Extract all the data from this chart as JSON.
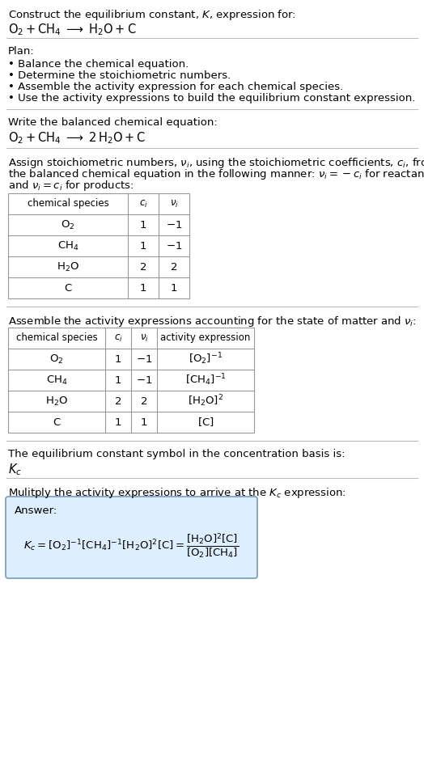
{
  "title_line1": "Construct the equilibrium constant, $K$, expression for:",
  "title_line2_plain": "O",
  "plan_header": "Plan:",
  "plan_items": [
    "• Balance the chemical equation.",
    "• Determine the stoichiometric numbers.",
    "• Assemble the activity expression for each chemical species.",
    "• Use the activity expressions to build the equilibrium constant expression."
  ],
  "balanced_header": "Write the balanced chemical equation:",
  "stoich_intro": [
    "Assign stoichiometric numbers, $\\nu_i$, using the stoichiometric coefficients, $c_i$, from",
    "the balanced chemical equation in the following manner: $\\nu_i = -c_i$ for reactants",
    "and $\\nu_i = c_i$ for products:"
  ],
  "table1_cols": [
    "chemical species",
    "$c_i$",
    "$\\nu_i$"
  ],
  "table1_rows": [
    [
      "$\\mathrm{O_2}$",
      "1",
      "$-1$"
    ],
    [
      "$\\mathrm{CH_4}$",
      "1",
      "$-1$"
    ],
    [
      "$\\mathrm{H_2O}$",
      "2",
      "2"
    ],
    [
      "C",
      "1",
      "1"
    ]
  ],
  "activity_header": "Assemble the activity expressions accounting for the state of matter and $\\nu_i$:",
  "table2_cols": [
    "chemical species",
    "$c_i$",
    "$\\nu_i$",
    "activity expression"
  ],
  "table2_rows": [
    [
      "$\\mathrm{O_2}$",
      "1",
      "$-1$",
      "$[\\mathrm{O_2}]^{-1}$"
    ],
    [
      "$\\mathrm{CH_4}$",
      "1",
      "$-1$",
      "$[\\mathrm{CH_4}]^{-1}$"
    ],
    [
      "$\\mathrm{H_2O}$",
      "2",
      "2",
      "$[\\mathrm{H_2O}]^{2}$"
    ],
    [
      "C",
      "1",
      "1",
      "$[\\mathrm{C}]$"
    ]
  ],
  "kc_header": "The equilibrium constant symbol in the concentration basis is:",
  "kc_symbol": "$K_c$",
  "multiply_header": "Mulitply the activity expressions to arrive at the $K_c$ expression:",
  "bg_color": "#ffffff",
  "text_color": "#000000",
  "table_border_color": "#999999",
  "answer_box_fill": "#ddeeff",
  "answer_box_border": "#7799bb",
  "font_size": 9.5,
  "font_size_small": 8.5
}
